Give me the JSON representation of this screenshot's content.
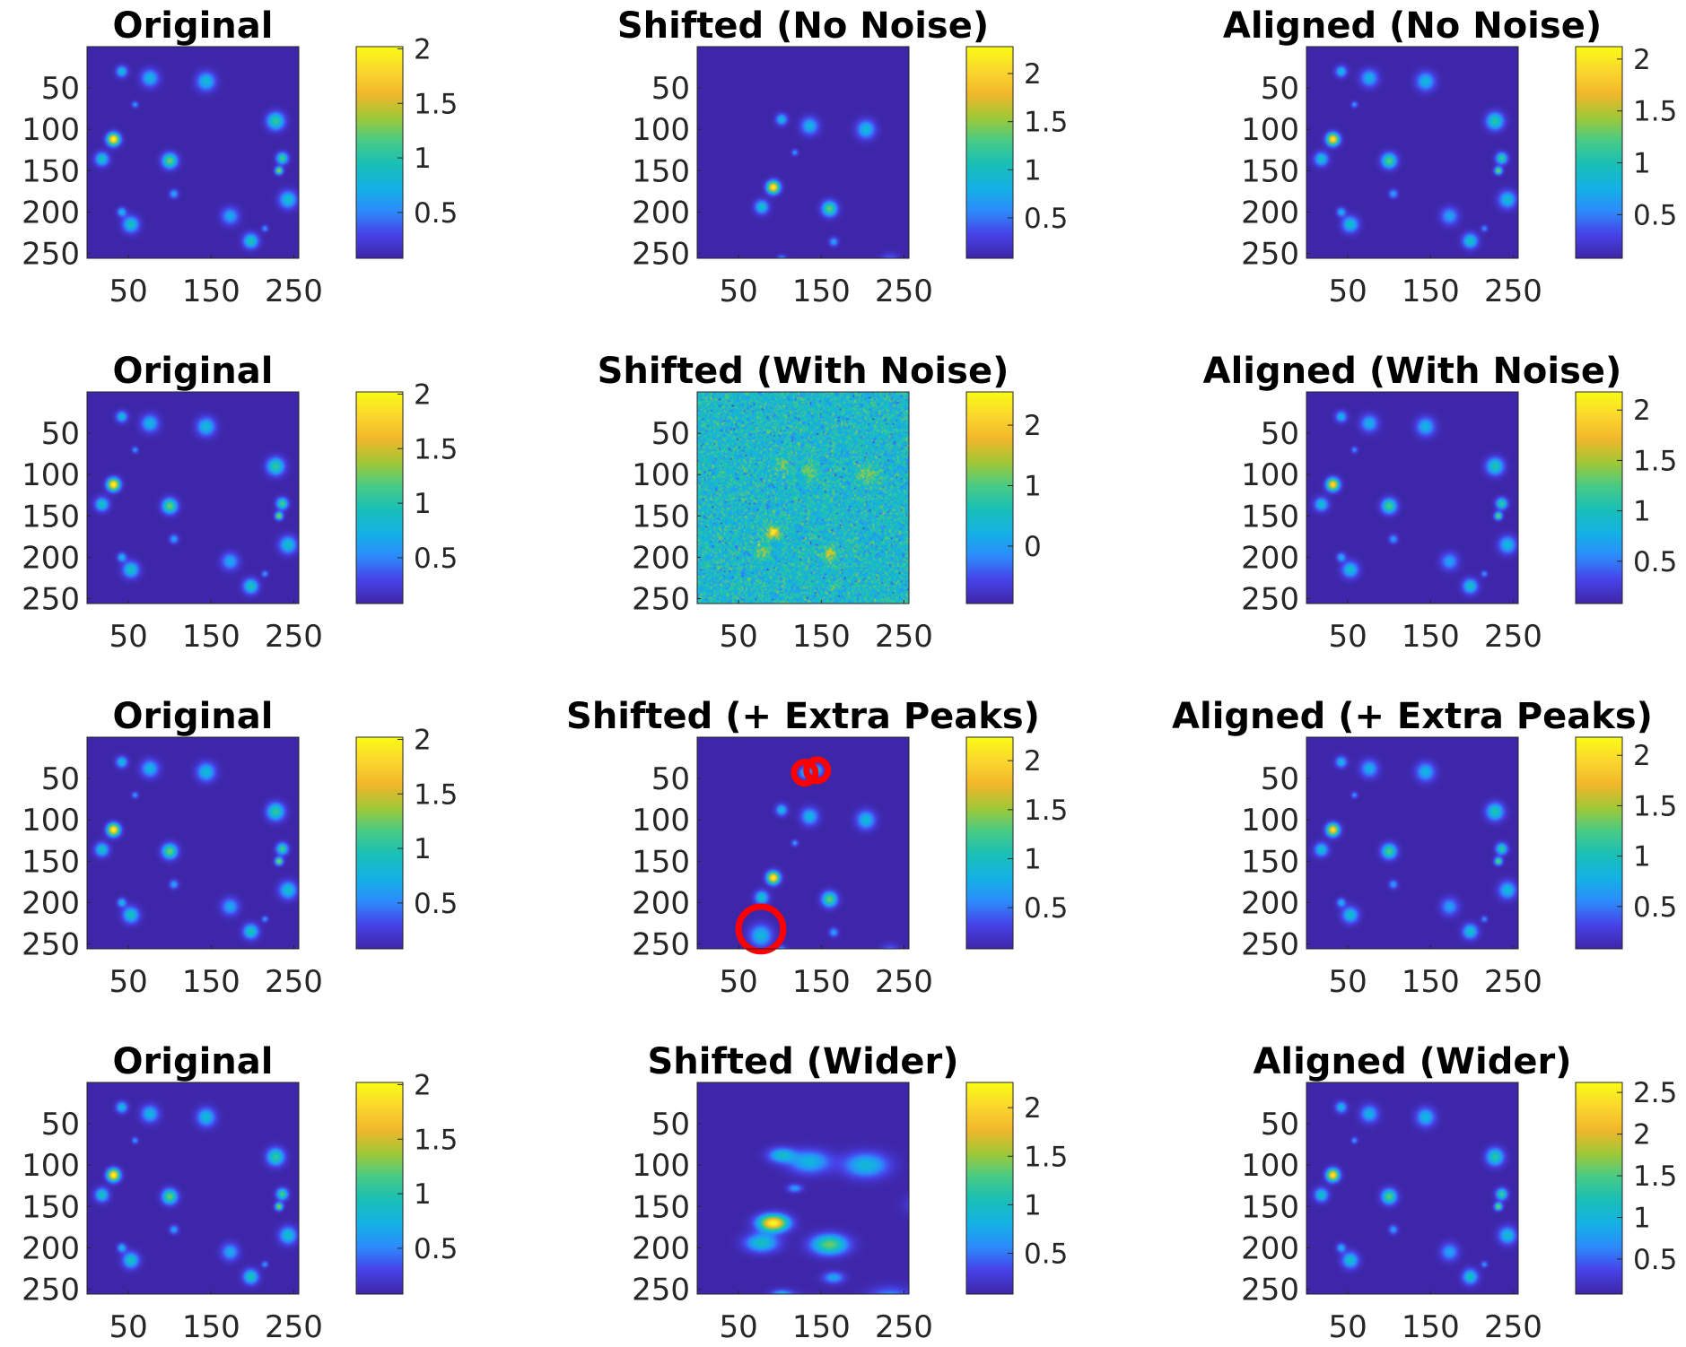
{
  "figure": {
    "colormap": "parula",
    "colors": {
      "background": "#3e26a8",
      "marker": "#ff0000",
      "parula_stops": [
        "#3e26a8",
        "#4742e8",
        "#2d8bfc",
        "#13b2e5",
        "#19bfb7",
        "#48cb86",
        "#a1c836",
        "#f2b72b",
        "#fbd72e",
        "#f9fb15"
      ]
    }
  },
  "chart_data": [
    {
      "type": "heatmap",
      "title": "Original",
      "variant": "original",
      "xticks": [
        50,
        150,
        250
      ],
      "yticks": [
        50,
        100,
        150,
        200,
        250
      ],
      "xlim": [
        0,
        256
      ],
      "ylim": [
        0,
        256
      ],
      "colorbar": {
        "range": [
          0.08,
          2.02
        ],
        "ticks": [
          {
            "value": 2,
            "label": "2"
          },
          {
            "value": 1.5,
            "label": "1.5"
          },
          {
            "value": 1,
            "label": "1"
          },
          {
            "value": 0.5,
            "label": "0.5"
          }
        ]
      }
    },
    {
      "type": "heatmap",
      "title": "Shifted (No Noise)",
      "variant": "shifted",
      "xticks": [
        50,
        150,
        250
      ],
      "yticks": [
        50,
        100,
        150,
        200,
        250
      ],
      "xlim": [
        0,
        256
      ],
      "ylim": [
        0,
        256
      ],
      "colorbar": {
        "range": [
          0.08,
          2.28
        ],
        "ticks": [
          {
            "value": 2,
            "label": "2"
          },
          {
            "value": 1.5,
            "label": "1.5"
          },
          {
            "value": 1,
            "label": "1"
          },
          {
            "value": 0.5,
            "label": "0.5"
          }
        ]
      }
    },
    {
      "type": "heatmap",
      "title": "Aligned (No Noise)",
      "variant": "original",
      "xticks": [
        50,
        150,
        250
      ],
      "yticks": [
        50,
        100,
        150,
        200,
        250
      ],
      "xlim": [
        0,
        256
      ],
      "ylim": [
        0,
        256
      ],
      "colorbar": {
        "range": [
          0.08,
          2.12
        ],
        "ticks": [
          {
            "value": 2,
            "label": "2"
          },
          {
            "value": 1.5,
            "label": "1.5"
          },
          {
            "value": 1,
            "label": "1"
          },
          {
            "value": 0.5,
            "label": "0.5"
          }
        ]
      }
    },
    {
      "type": "heatmap",
      "title": "Original",
      "variant": "original",
      "xticks": [
        50,
        150,
        250
      ],
      "yticks": [
        50,
        100,
        150,
        200,
        250
      ],
      "xlim": [
        0,
        256
      ],
      "ylim": [
        0,
        256
      ],
      "colorbar": {
        "range": [
          0.08,
          2.02
        ],
        "ticks": [
          {
            "value": 2,
            "label": "2"
          },
          {
            "value": 1.5,
            "label": "1.5"
          },
          {
            "value": 1,
            "label": "1"
          },
          {
            "value": 0.5,
            "label": "0.5"
          }
        ]
      }
    },
    {
      "type": "heatmap",
      "title": "Shifted (With Noise)",
      "variant": "shifted_noise",
      "xticks": [
        50,
        150,
        250
      ],
      "yticks": [
        50,
        100,
        150,
        200,
        250
      ],
      "xlim": [
        0,
        256
      ],
      "ylim": [
        0,
        256
      ],
      "colorbar": {
        "range": [
          -0.95,
          2.55
        ],
        "ticks": [
          {
            "value": 2,
            "label": "2"
          },
          {
            "value": 1,
            "label": "1"
          },
          {
            "value": 0,
            "label": "0"
          }
        ]
      }
    },
    {
      "type": "heatmap",
      "title": "Aligned (With Noise)",
      "variant": "original",
      "xticks": [
        50,
        150,
        250
      ],
      "yticks": [
        50,
        100,
        150,
        200,
        250
      ],
      "xlim": [
        0,
        256
      ],
      "ylim": [
        0,
        256
      ],
      "colorbar": {
        "range": [
          0.08,
          2.18
        ],
        "ticks": [
          {
            "value": 2,
            "label": "2"
          },
          {
            "value": 1.5,
            "label": "1.5"
          },
          {
            "value": 1,
            "label": "1"
          },
          {
            "value": 0.5,
            "label": "0.5"
          }
        ]
      }
    },
    {
      "type": "heatmap",
      "title": "Original",
      "variant": "original",
      "xticks": [
        50,
        150,
        250
      ],
      "yticks": [
        50,
        100,
        150,
        200,
        250
      ],
      "xlim": [
        0,
        256
      ],
      "ylim": [
        0,
        256
      ],
      "colorbar": {
        "range": [
          0.08,
          2.02
        ],
        "ticks": [
          {
            "value": 2,
            "label": "2"
          },
          {
            "value": 1.5,
            "label": "1.5"
          },
          {
            "value": 1,
            "label": "1"
          },
          {
            "value": 0.5,
            "label": "0.5"
          }
        ]
      }
    },
    {
      "type": "heatmap",
      "title": "Shifted (+ Extra Peaks)",
      "variant": "shifted_extra",
      "xticks": [
        50,
        150,
        250
      ],
      "yticks": [
        50,
        100,
        150,
        200,
        250
      ],
      "xlim": [
        0,
        256
      ],
      "ylim": [
        0,
        256
      ],
      "markers": [
        {
          "x": 130,
          "y": 43,
          "r": 13
        },
        {
          "x": 145,
          "y": 40,
          "r": 13
        },
        {
          "x": 77,
          "y": 232,
          "r": 27
        }
      ],
      "colorbar": {
        "range": [
          0.08,
          2.24
        ],
        "ticks": [
          {
            "value": 2,
            "label": "2"
          },
          {
            "value": 1.5,
            "label": "1.5"
          },
          {
            "value": 1,
            "label": "1"
          },
          {
            "value": 0.5,
            "label": "0.5"
          }
        ]
      }
    },
    {
      "type": "heatmap",
      "title": "Aligned (+ Extra Peaks)",
      "variant": "original",
      "xticks": [
        50,
        150,
        250
      ],
      "yticks": [
        50,
        100,
        150,
        200,
        250
      ],
      "xlim": [
        0,
        256
      ],
      "ylim": [
        0,
        256
      ],
      "colorbar": {
        "range": [
          0.08,
          2.18
        ],
        "ticks": [
          {
            "value": 2,
            "label": "2"
          },
          {
            "value": 1.5,
            "label": "1.5"
          },
          {
            "value": 1,
            "label": "1"
          },
          {
            "value": 0.5,
            "label": "0.5"
          }
        ]
      }
    },
    {
      "type": "heatmap",
      "title": "Original",
      "variant": "original",
      "xticks": [
        50,
        150,
        250
      ],
      "yticks": [
        50,
        100,
        150,
        200,
        250
      ],
      "xlim": [
        0,
        256
      ],
      "ylim": [
        0,
        256
      ],
      "colorbar": {
        "range": [
          0.08,
          2.02
        ],
        "ticks": [
          {
            "value": 2,
            "label": "2"
          },
          {
            "value": 1.5,
            "label": "1.5"
          },
          {
            "value": 1,
            "label": "1"
          },
          {
            "value": 0.5,
            "label": "0.5"
          }
        ]
      }
    },
    {
      "type": "heatmap",
      "title": "Shifted (Wider)",
      "variant": "shifted_wider",
      "xticks": [
        50,
        150,
        250
      ],
      "yticks": [
        50,
        100,
        150,
        200,
        250
      ],
      "xlim": [
        0,
        256
      ],
      "ylim": [
        0,
        256
      ],
      "colorbar": {
        "range": [
          0.08,
          2.26
        ],
        "ticks": [
          {
            "value": 2,
            "label": "2"
          },
          {
            "value": 1.5,
            "label": "1.5"
          },
          {
            "value": 1,
            "label": "1"
          },
          {
            "value": 0.5,
            "label": "0.5"
          }
        ]
      }
    },
    {
      "type": "heatmap",
      "title": "Aligned (Wider)",
      "variant": "aligned_wider",
      "xticks": [
        50,
        150,
        250
      ],
      "yticks": [
        50,
        100,
        150,
        200,
        250
      ],
      "xlim": [
        0,
        256
      ],
      "ylim": [
        0,
        256
      ],
      "colorbar": {
        "range": [
          0.08,
          2.62
        ],
        "ticks": [
          {
            "value": 2.5,
            "label": "2.5"
          },
          {
            "value": 2,
            "label": "2"
          },
          {
            "value": 1.5,
            "label": "1.5"
          },
          {
            "value": 1,
            "label": "1"
          },
          {
            "value": 0.5,
            "label": "0.5"
          }
        ]
      }
    }
  ],
  "peak_sets": {
    "original": [
      {
        "x": 42,
        "y": 30,
        "sigma": 4.5,
        "amp": 0.75
      },
      {
        "x": 76,
        "y": 38,
        "sigma": 7.0,
        "amp": 0.7
      },
      {
        "x": 144,
        "y": 42,
        "sigma": 7.5,
        "amp": 0.75
      },
      {
        "x": 58,
        "y": 70,
        "sigma": 2.5,
        "amp": 0.55
      },
      {
        "x": 228,
        "y": 90,
        "sigma": 7.0,
        "amp": 1.0
      },
      {
        "x": 32,
        "y": 112,
        "sigma": 5.0,
        "amp": 2.0
      },
      {
        "x": 18,
        "y": 136,
        "sigma": 5.5,
        "amp": 0.85
      },
      {
        "x": 100,
        "y": 138,
        "sigma": 6.0,
        "amp": 1.2
      },
      {
        "x": 236,
        "y": 135,
        "sigma": 4.5,
        "amp": 1.1
      },
      {
        "x": 232,
        "y": 150,
        "sigma": 3.0,
        "amp": 1.35
      },
      {
        "x": 105,
        "y": 178,
        "sigma": 3.5,
        "amp": 0.6
      },
      {
        "x": 243,
        "y": 185,
        "sigma": 7.0,
        "amp": 0.8
      },
      {
        "x": 42,
        "y": 200,
        "sigma": 3.5,
        "amp": 0.7
      },
      {
        "x": 53,
        "y": 215,
        "sigma": 6.5,
        "amp": 0.85
      },
      {
        "x": 173,
        "y": 205,
        "sigma": 7.0,
        "amp": 0.6
      },
      {
        "x": 215,
        "y": 220,
        "sigma": 2.5,
        "amp": 0.55
      },
      {
        "x": 198,
        "y": 235,
        "sigma": 6.0,
        "amp": 0.9
      }
    ],
    "shift": {
      "dx": 60,
      "dy": 58
    },
    "extra_peaks": [
      {
        "x": 130,
        "y": 43,
        "sigma": 5.0,
        "amp": 0.7
      },
      {
        "x": 145,
        "y": 40,
        "sigma": 5.0,
        "amp": 0.7
      },
      {
        "x": 77,
        "y": 240,
        "sigma": 9.0,
        "amp": 0.8
      }
    ],
    "noise_level": 0.35
  }
}
